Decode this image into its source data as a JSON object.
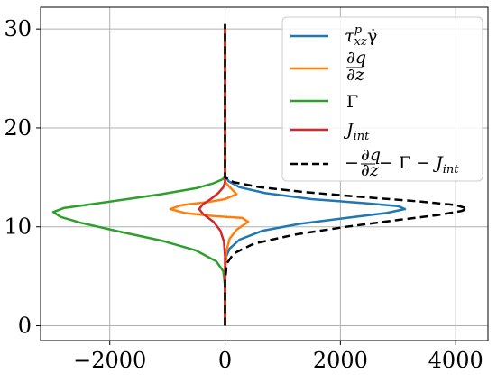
{
  "chart_data": {
    "type": "line",
    "title": "",
    "xlabel": "",
    "ylabel": "",
    "xlim": [
      -3200,
      4560
    ],
    "ylim": [
      -1.5,
      32.2
    ],
    "xticks": [
      -2000,
      0,
      2000,
      4000
    ],
    "yticks": [
      0,
      10,
      20,
      30
    ],
    "xtick_labels": [
      "−2000",
      "0",
      "2000",
      "4000"
    ],
    "ytick_labels": [
      "0",
      "10",
      "20",
      "30"
    ],
    "grid": true,
    "legend_position": "top-right",
    "series": [
      {
        "name": "τ_xz^p γ̇",
        "color": "#1f77b4",
        "style": "solid",
        "points": [
          [
            0,
            0
          ],
          [
            0,
            3
          ],
          [
            0,
            5.5
          ],
          [
            20,
            7
          ],
          [
            80,
            7.8
          ],
          [
            250,
            8.7
          ],
          [
            650,
            9.6
          ],
          [
            1300,
            10.3
          ],
          [
            2100,
            10.9
          ],
          [
            2800,
            11.4
          ],
          [
            3120,
            11.8
          ],
          [
            3000,
            12.1
          ],
          [
            2400,
            12.4
          ],
          [
            1500,
            12.8
          ],
          [
            700,
            13.4
          ],
          [
            250,
            14.0
          ],
          [
            60,
            14.6
          ],
          [
            0,
            15.2
          ],
          [
            0,
            30.5
          ]
        ]
      },
      {
        "name": "∂q/∂z",
        "color": "#ff7f0e",
        "style": "solid",
        "points": [
          [
            0,
            0
          ],
          [
            0,
            5
          ],
          [
            20,
            7.5
          ],
          [
            80,
            8.8
          ],
          [
            200,
            9.7
          ],
          [
            400,
            10.5
          ],
          [
            300,
            10.9
          ],
          [
            -200,
            11.1
          ],
          [
            -700,
            11.4
          ],
          [
            -950,
            11.8
          ],
          [
            -750,
            12.2
          ],
          [
            -300,
            12.5
          ],
          [
            0,
            12.8
          ],
          [
            200,
            13.3
          ],
          [
            100,
            13.9
          ],
          [
            0,
            14.5
          ],
          [
            0,
            30.5
          ]
        ]
      },
      {
        "name": "Γ",
        "color": "#2ca02c",
        "style": "solid",
        "points": [
          [
            0,
            0
          ],
          [
            0,
            4
          ],
          [
            -30,
            5.5
          ],
          [
            -150,
            6.5
          ],
          [
            -500,
            7.6
          ],
          [
            -1100,
            8.6
          ],
          [
            -1900,
            9.6
          ],
          [
            -2500,
            10.4
          ],
          [
            -2850,
            11.0
          ],
          [
            -2980,
            11.5
          ],
          [
            -2800,
            11.9
          ],
          [
            -2300,
            12.3
          ],
          [
            -1700,
            12.8
          ],
          [
            -1100,
            13.3
          ],
          [
            -500,
            13.9
          ],
          [
            -200,
            14.4
          ],
          [
            -40,
            14.8
          ],
          [
            0,
            15.2
          ],
          [
            0,
            30.5
          ]
        ]
      },
      {
        "name": "J_int",
        "color": "#d62728",
        "style": "solid",
        "points": [
          [
            0,
            0
          ],
          [
            0,
            7
          ],
          [
            -20,
            8.5
          ],
          [
            -80,
            9.6
          ],
          [
            -200,
            10.5
          ],
          [
            -380,
            11.3
          ],
          [
            -450,
            11.8
          ],
          [
            -380,
            12.3
          ],
          [
            -250,
            12.8
          ],
          [
            -120,
            13.4
          ],
          [
            -30,
            14.0
          ],
          [
            0,
            14.5
          ],
          [
            0,
            30.5
          ]
        ]
      },
      {
        "name": "−∂q/∂z − Γ − J_int",
        "color": "#000000",
        "style": "dashed",
        "points": [
          [
            0,
            0
          ],
          [
            0,
            4.5
          ],
          [
            30,
            6.3
          ],
          [
            150,
            7.3
          ],
          [
            500,
            8.3
          ],
          [
            1200,
            9.2
          ],
          [
            2100,
            10.0
          ],
          [
            3000,
            10.7
          ],
          [
            3700,
            11.2
          ],
          [
            4100,
            11.6
          ],
          [
            4200,
            11.85
          ],
          [
            4000,
            12.2
          ],
          [
            3300,
            12.6
          ],
          [
            2400,
            13.0
          ],
          [
            1400,
            13.5
          ],
          [
            600,
            14.0
          ],
          [
            150,
            14.5
          ],
          [
            0,
            15.0
          ],
          [
            0,
            30.5
          ]
        ]
      }
    ]
  }
}
